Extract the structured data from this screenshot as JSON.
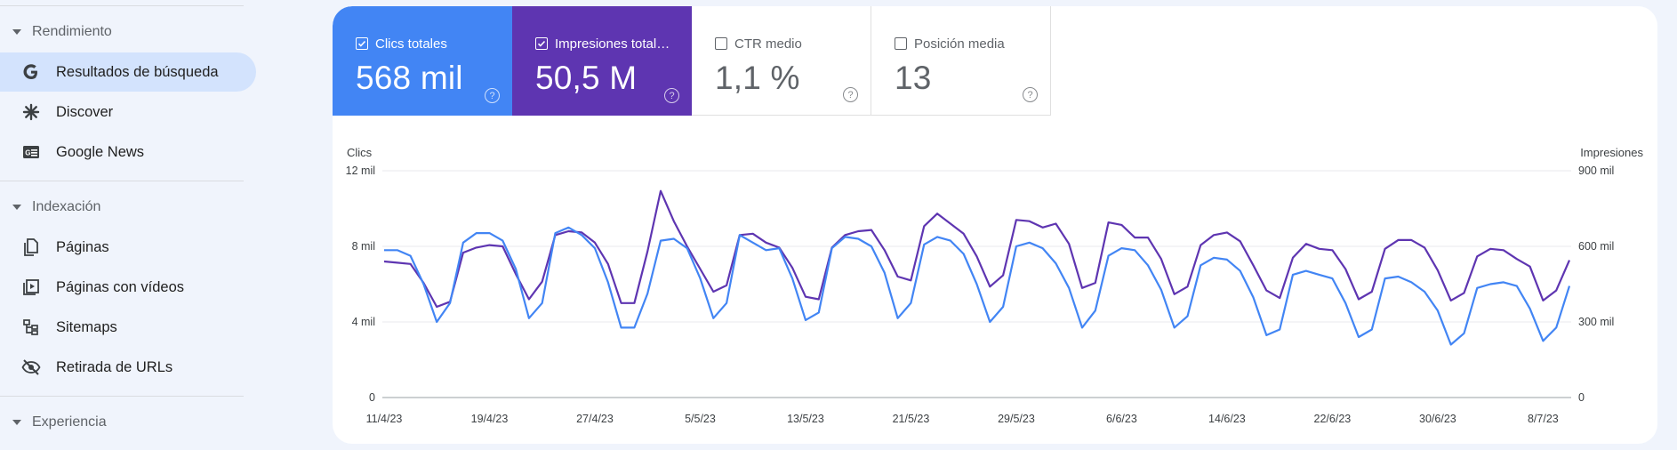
{
  "sidebar": {
    "sections": [
      {
        "label": "Rendimiento"
      },
      {
        "label": "Indexación"
      },
      {
        "label": "Experiencia"
      }
    ],
    "items": [
      {
        "label": "Resultados de búsqueda",
        "icon": "google-g-icon"
      },
      {
        "label": "Discover",
        "icon": "asterisk-icon"
      },
      {
        "label": "Google News",
        "icon": "news-icon"
      },
      {
        "label": "Páginas",
        "icon": "pages-icon"
      },
      {
        "label": "Páginas con vídeos",
        "icon": "video-pages-icon"
      },
      {
        "label": "Sitemaps",
        "icon": "sitemap-icon"
      },
      {
        "label": "Retirada de URLs",
        "icon": "eye-off-icon"
      }
    ]
  },
  "metrics": {
    "clicks": {
      "label": "Clics totales",
      "value": "568 mil",
      "checked": true,
      "color": "#4285f4"
    },
    "impressions": {
      "label": "Impresiones total…",
      "value": "50,5 M",
      "checked": true,
      "color": "#5e35b1"
    },
    "ctr": {
      "label": "CTR medio",
      "value": "1,1 %",
      "checked": false
    },
    "position": {
      "label": "Posición media",
      "value": "13",
      "checked": false
    }
  },
  "chart_data": {
    "type": "line",
    "ylabel_left": "Clics",
    "ylabel_right": "Impresiones",
    "yticks_left": [
      "0",
      "4 mil",
      "8 mil",
      "12 mil"
    ],
    "yticks_right": [
      "0",
      "300 mil",
      "600 mil",
      "900 mil"
    ],
    "ylim_left": [
      0,
      12000
    ],
    "ylim_right": [
      0,
      900000
    ],
    "x_tick_labels": [
      "11/4/23",
      "19/4/23",
      "27/4/23",
      "5/5/23",
      "13/5/23",
      "21/5/23",
      "29/5/23",
      "6/6/23",
      "14/6/23",
      "22/6/23",
      "30/6/23",
      "8/7/23"
    ],
    "grid": true,
    "series": [
      {
        "name": "Clics totales",
        "axis": "left",
        "color": "#4285f4",
        "values": [
          7800,
          7800,
          7500,
          6000,
          4000,
          5000,
          8200,
          8700,
          8700,
          8300,
          6800,
          4200,
          5000,
          8700,
          9000,
          8600,
          7900,
          6100,
          3700,
          3700,
          5500,
          8300,
          8400,
          7900,
          6300,
          4200,
          5000,
          8600,
          8200,
          7800,
          7900,
          6300,
          4100,
          4500,
          7900,
          8500,
          8400,
          8000,
          6600,
          4200,
          5000,
          8100,
          8500,
          8300,
          7600,
          6000,
          4000,
          4800,
          8000,
          8200,
          7900,
          7100,
          5800,
          3700,
          4600,
          7500,
          7900,
          7800,
          7000,
          5700,
          3700,
          4300,
          7000,
          7400,
          7300,
          6700,
          5300,
          3300,
          3600,
          6500,
          6700,
          6500,
          6300,
          5000,
          3200,
          3600,
          6300,
          6400,
          6100,
          5600,
          4600,
          2800,
          3400,
          5800,
          6000,
          6100,
          5900,
          4700,
          3000,
          3700,
          5900
        ]
      },
      {
        "name": "Impresiones totales",
        "axis": "right",
        "color": "#5e35b1",
        "values": [
          540000,
          535000,
          530000,
          455000,
          360000,
          380000,
          575000,
          595000,
          605000,
          600000,
          490000,
          390000,
          460000,
          645000,
          660000,
          655000,
          615000,
          530000,
          375000,
          375000,
          580000,
          820000,
          700000,
          600000,
          510000,
          420000,
          445000,
          645000,
          650000,
          615000,
          595000,
          515000,
          400000,
          390000,
          595000,
          645000,
          660000,
          665000,
          585000,
          480000,
          465000,
          680000,
          730000,
          690000,
          650000,
          560000,
          440000,
          485000,
          705000,
          700000,
          675000,
          690000,
          610000,
          435000,
          455000,
          695000,
          685000,
          635000,
          635000,
          550000,
          410000,
          440000,
          605000,
          645000,
          655000,
          620000,
          525000,
          425000,
          395000,
          555000,
          610000,
          590000,
          585000,
          510000,
          390000,
          420000,
          590000,
          625000,
          625000,
          595000,
          505000,
          385000,
          415000,
          560000,
          590000,
          585000,
          550000,
          520000,
          385000,
          425000,
          545000
        ]
      }
    ]
  }
}
